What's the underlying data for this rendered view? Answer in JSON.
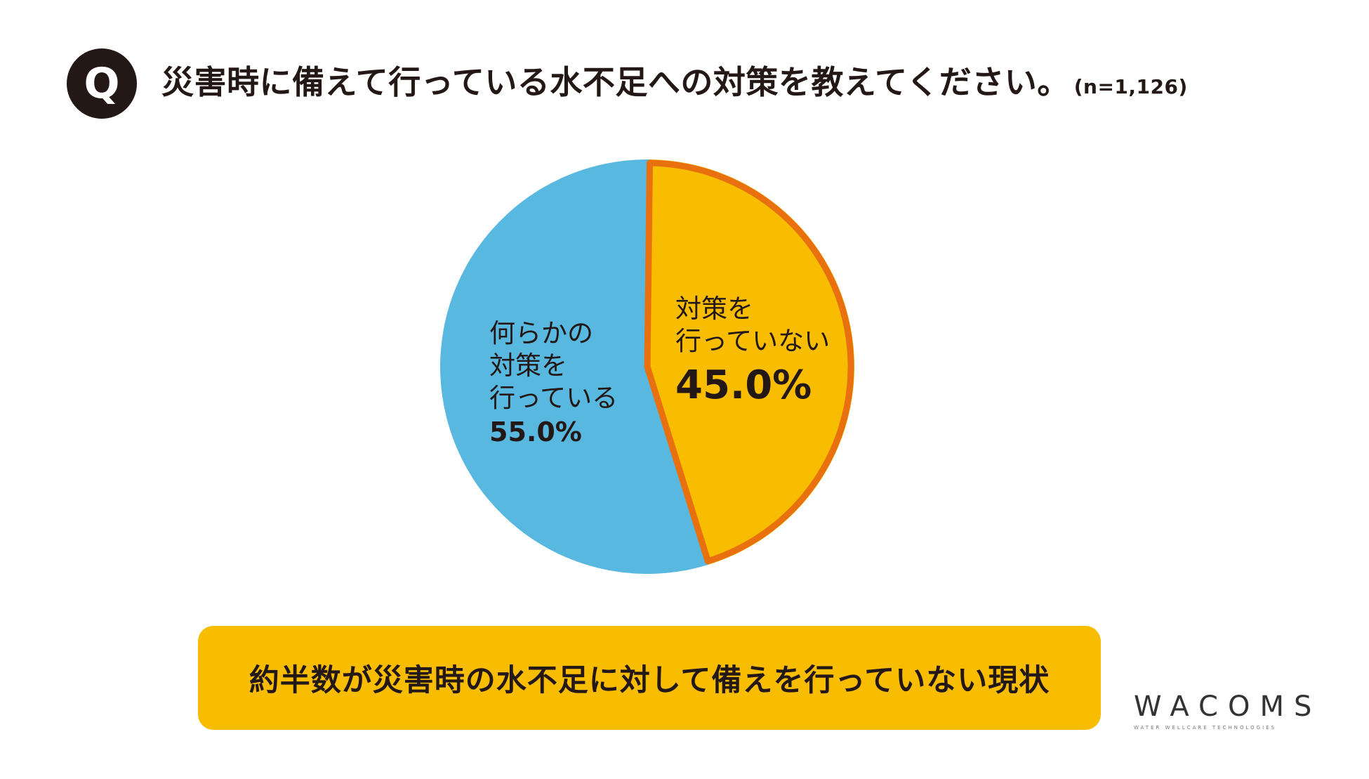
{
  "header": {
    "badge": "Q",
    "question": "災害時に備えて行っている水不足への対策を教えてください。",
    "sample": "(n=1,126)"
  },
  "chart_data": {
    "type": "pie",
    "title": "災害時に備えて行っている水不足への対策を教えてください。",
    "slices": [
      {
        "label": "対策を行っていない",
        "value": 45.0,
        "display": "45.0%",
        "color": "#f8bd00",
        "stroke": "#e8700e"
      },
      {
        "label": "何らかの対策を行っている",
        "value": 55.0,
        "display": "55.0%",
        "color": "#58b8e0"
      }
    ]
  },
  "labels": {
    "right_lines": [
      "対策を",
      "行っていない"
    ],
    "right_pct": "45.0%",
    "left_lines": [
      "何らかの",
      "対策を",
      "行っている"
    ],
    "left_pct": "55.0%"
  },
  "summary": "約半数が災害時の水不足に対して備えを行っていない現状",
  "logo": {
    "word": "WACOMS",
    "tagline": "WATER WELLCARE TECHNOLOGIES"
  }
}
